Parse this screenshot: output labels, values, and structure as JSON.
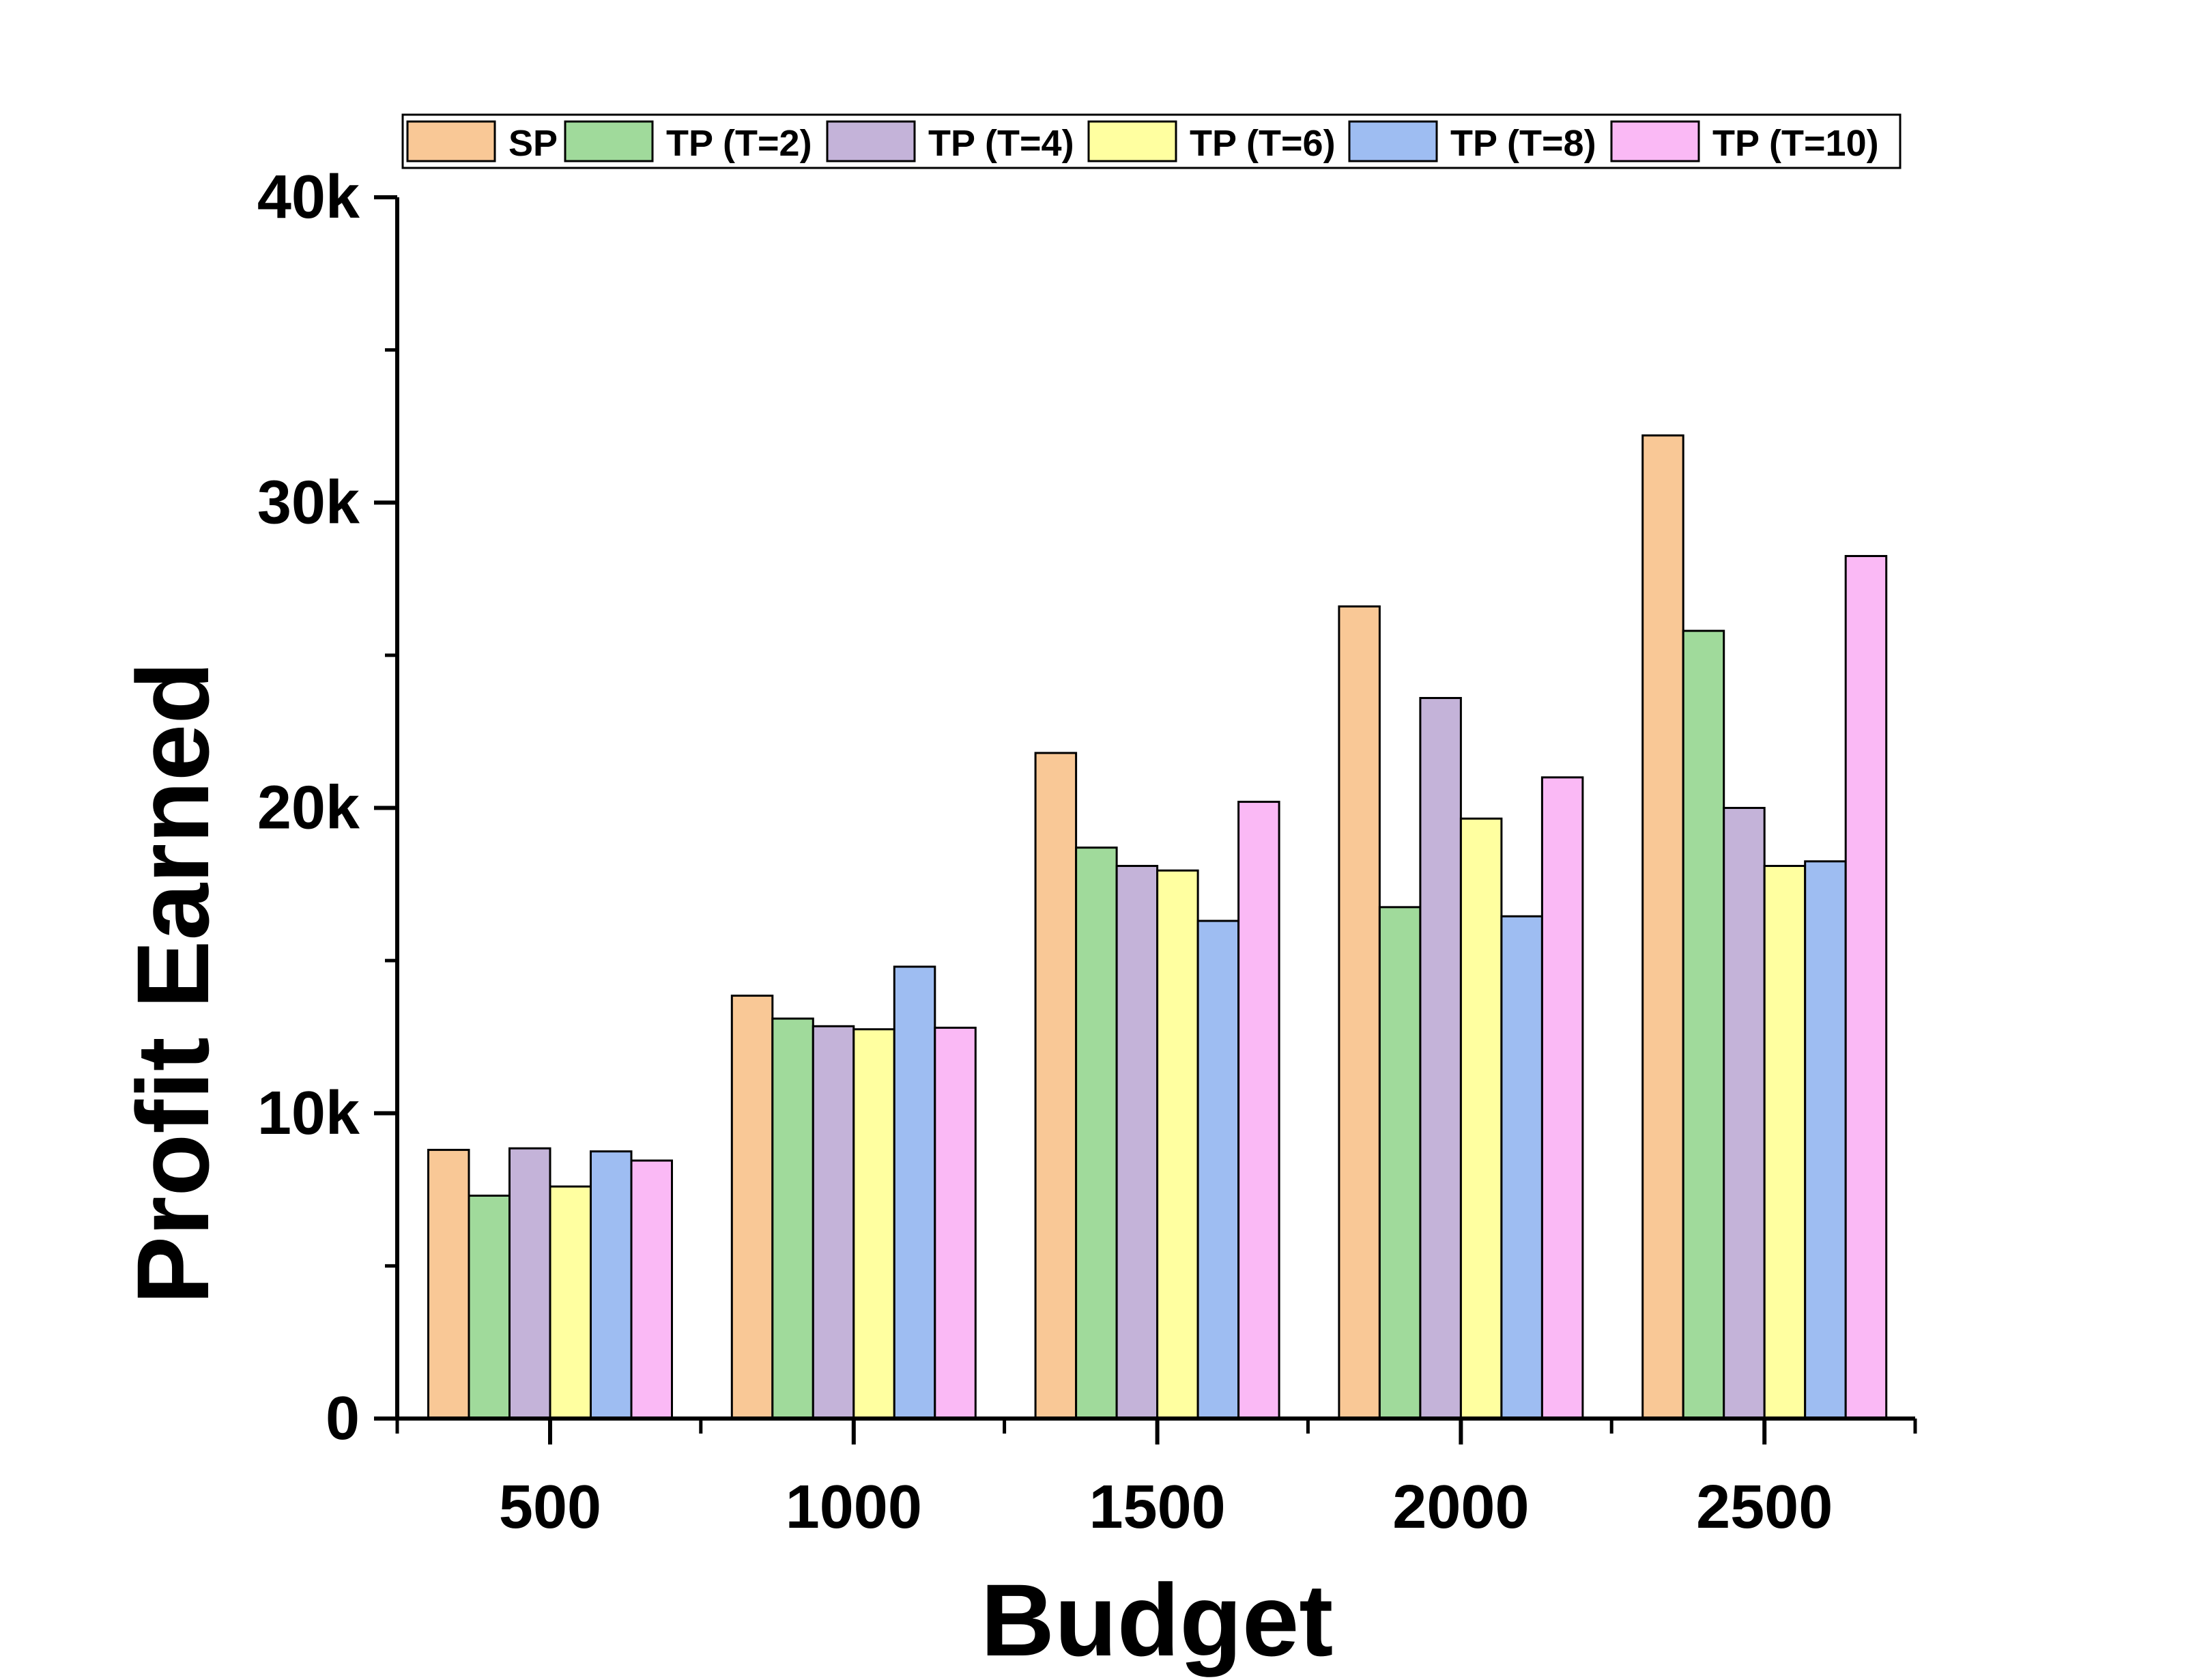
{
  "chart_data": {
    "type": "bar",
    "title": "",
    "xlabel": "Budget",
    "ylabel": "Profit Earned",
    "categories": [
      "500",
      "1000",
      "1500",
      "2000",
      "2500"
    ],
    "ylim": [
      0,
      40000
    ],
    "yticks": [
      0,
      10000,
      20000,
      30000,
      40000
    ],
    "ytick_labels": [
      "0",
      "10k",
      "20k",
      "30k",
      "40k"
    ],
    "grid": false,
    "legend_position": "top",
    "series": [
      {
        "name": "SP",
        "color": "#F9C896",
        "values": [
          8800,
          13850,
          21800,
          26600,
          32200
        ]
      },
      {
        "name": "TP (T=2)",
        "color": "#A0DA9B",
        "values": [
          7300,
          13100,
          18700,
          16750,
          25800
        ]
      },
      {
        "name": "TP (T=4)",
        "color": "#C4B3D9",
        "values": [
          8850,
          12850,
          18100,
          23600,
          20000
        ]
      },
      {
        "name": "TP (T=6)",
        "color": "#FFFFA0",
        "values": [
          7600,
          12750,
          17950,
          19650,
          18100
        ]
      },
      {
        "name": "TP (T=8)",
        "color": "#9EBDF2",
        "values": [
          8750,
          14800,
          16300,
          16450,
          18250
        ]
      },
      {
        "name": "TP (T=10)",
        "color": "#FAB9F5",
        "values": [
          8450,
          12800,
          20200,
          21000,
          28250
        ]
      }
    ]
  }
}
